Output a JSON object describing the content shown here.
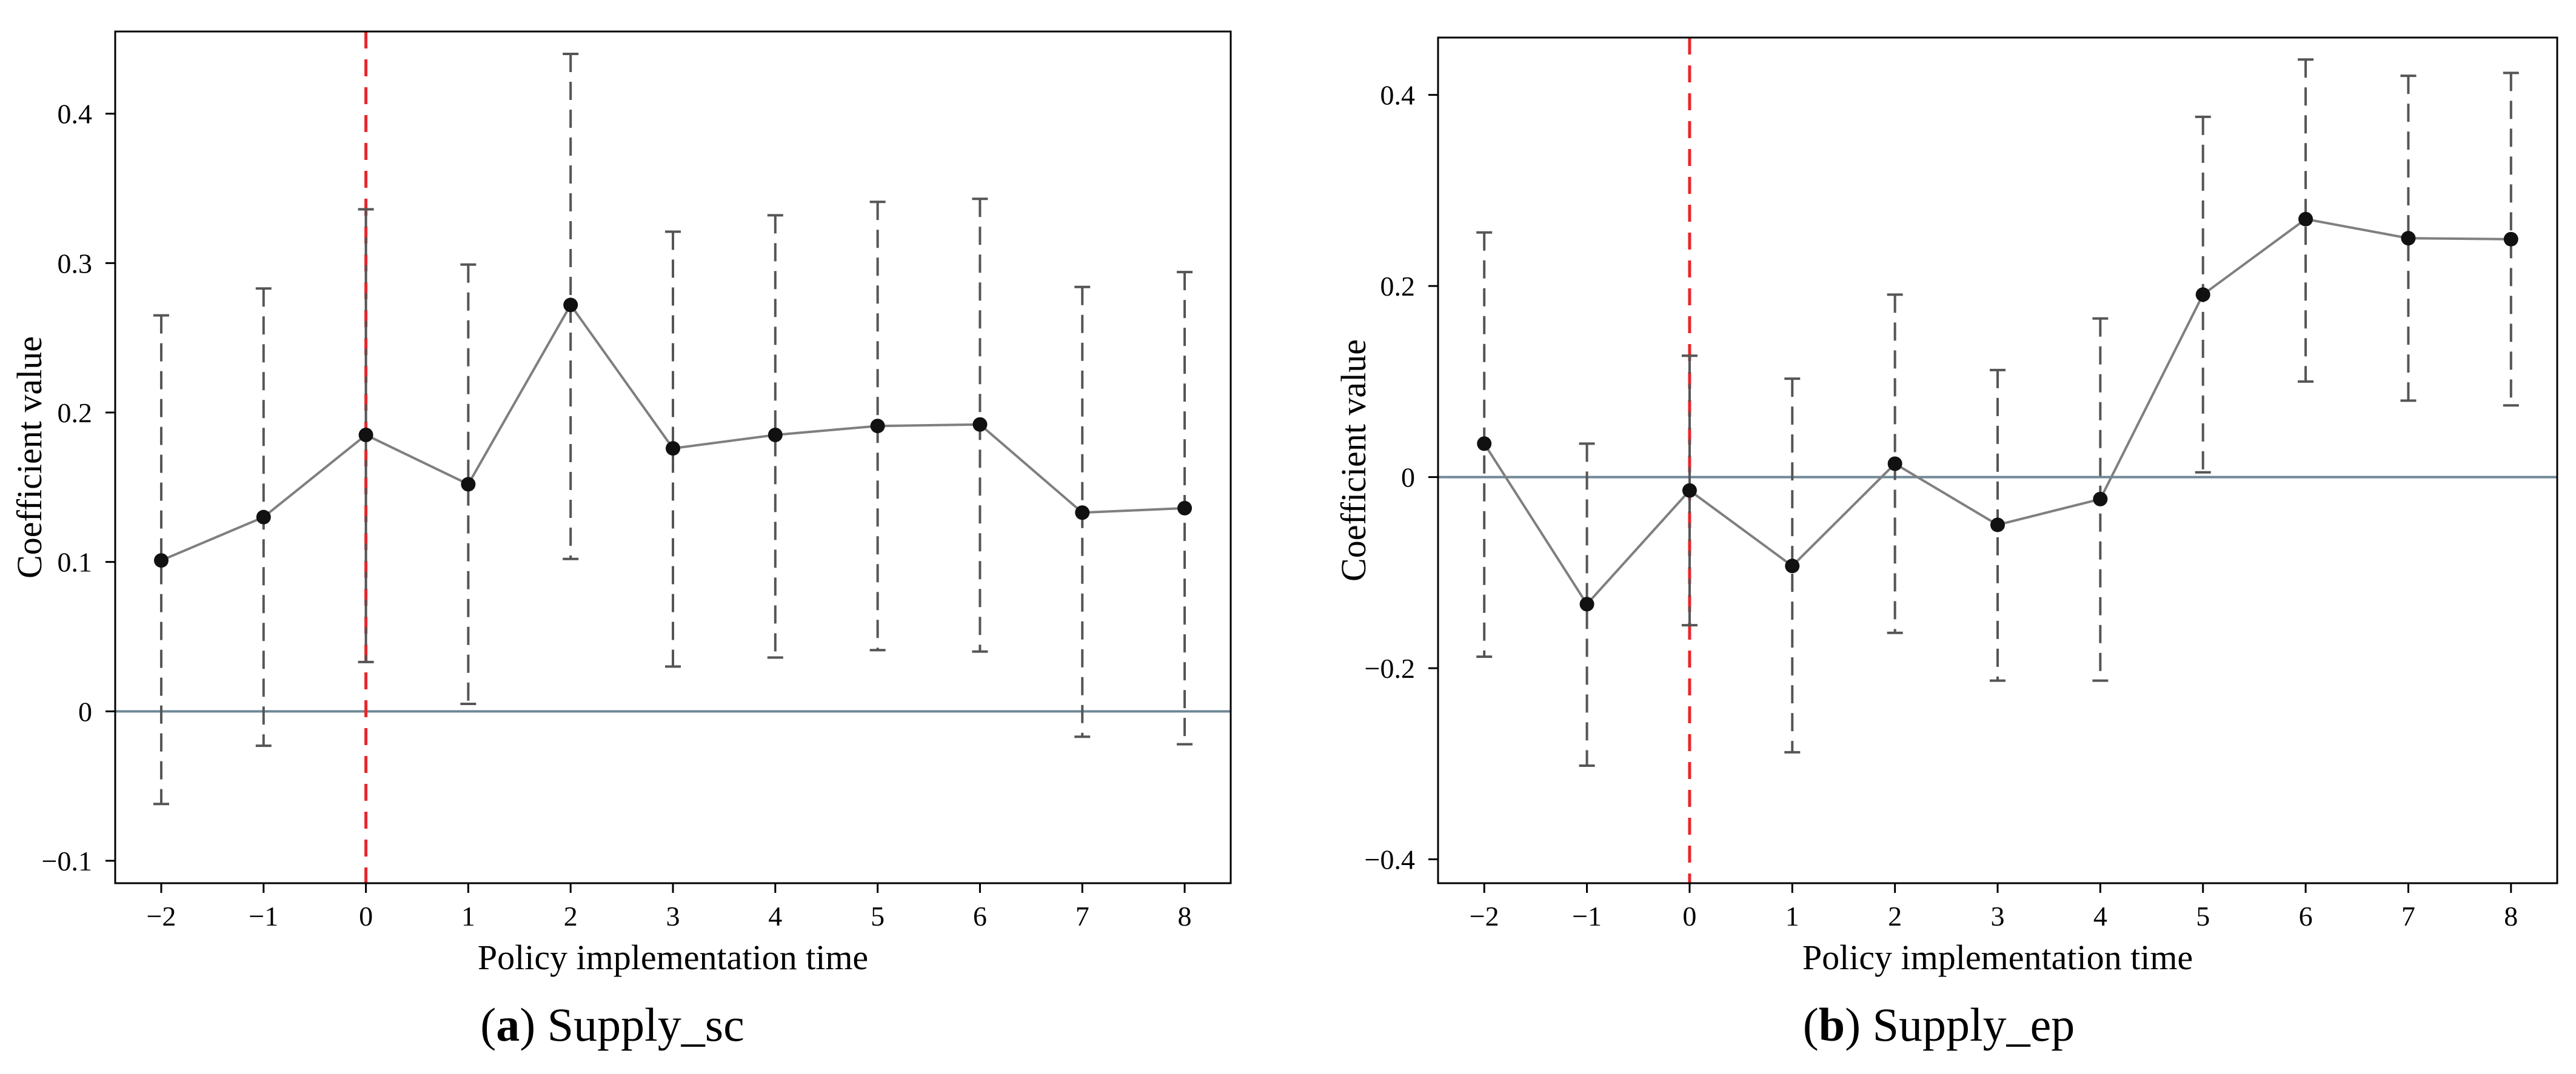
{
  "chart_data": [
    {
      "type": "line",
      "panel": "a",
      "caption_letter": "a",
      "caption_text": " Supply_sc",
      "xlabel": "Policy implementation time",
      "ylabel": "Coefficient value",
      "x": [
        -2,
        -1,
        0,
        1,
        2,
        3,
        4,
        5,
        6,
        7,
        8
      ],
      "x_tick_labels": [
        "−2",
        "−1",
        "0",
        "1",
        "2",
        "3",
        "4",
        "5",
        "6",
        "7",
        "8"
      ],
      "values": [
        0.101,
        0.13,
        0.185,
        0.152,
        0.272,
        0.176,
        0.185,
        0.191,
        0.192,
        0.133,
        0.136
      ],
      "ci_lower": [
        -0.062,
        -0.023,
        0.033,
        0.005,
        0.102,
        0.03,
        0.036,
        0.041,
        0.04,
        -0.017,
        -0.022
      ],
      "ci_upper": [
        0.265,
        0.283,
        0.336,
        0.299,
        0.44,
        0.321,
        0.332,
        0.341,
        0.343,
        0.284,
        0.294
      ],
      "y_ticks": [
        -0.1,
        0,
        0.1,
        0.2,
        0.3,
        0.4
      ],
      "y_tick_labels": [
        "−0.1",
        "0",
        "0.1",
        "0.2",
        "0.3",
        "0.4"
      ],
      "xlim": [
        -2.45,
        8.45
      ],
      "ylim": [
        -0.115,
        0.455
      ],
      "reference_hline": 0,
      "reference_vline": 0,
      "colors": {
        "line": "#7f7f7f",
        "marker": "#111111",
        "ci": "#555555",
        "hline": "#6f8796",
        "vline": "#e8262b"
      }
    },
    {
      "type": "line",
      "panel": "b",
      "caption_letter": "b",
      "caption_text": " Supply_ep",
      "xlabel": "Policy implementation time",
      "ylabel": "Coefficient value",
      "x": [
        -2,
        -1,
        0,
        1,
        2,
        3,
        4,
        5,
        6,
        7,
        8
      ],
      "x_tick_labels": [
        "−2",
        "−1",
        "0",
        "1",
        "2",
        "3",
        "4",
        "5",
        "6",
        "7",
        "8"
      ],
      "values": [
        0.035,
        -0.133,
        -0.014,
        -0.093,
        0.014,
        -0.05,
        -0.023,
        0.191,
        0.27,
        0.25,
        0.249
      ],
      "ci_lower": [
        -0.188,
        -0.302,
        -0.155,
        -0.288,
        -0.163,
        -0.213,
        -0.213,
        0.005,
        0.1,
        0.08,
        0.075
      ],
      "ci_upper": [
        0.256,
        0.035,
        0.127,
        0.103,
        0.191,
        0.112,
        0.166,
        0.377,
        0.437,
        0.42,
        0.423
      ],
      "y_ticks": [
        -0.4,
        -0.2,
        0,
        0.2,
        0.4
      ],
      "y_tick_labels": [
        "−0.4",
        "−0.2",
        "0",
        "0.2",
        "0.4"
      ],
      "xlim": [
        -2.45,
        8.45
      ],
      "ylim": [
        -0.425,
        0.46
      ],
      "reference_hline": 0,
      "reference_vline": 0,
      "colors": {
        "line": "#7f7f7f",
        "marker": "#111111",
        "ci": "#555555",
        "hline": "#6f8796",
        "vline": "#e8262b"
      }
    }
  ]
}
